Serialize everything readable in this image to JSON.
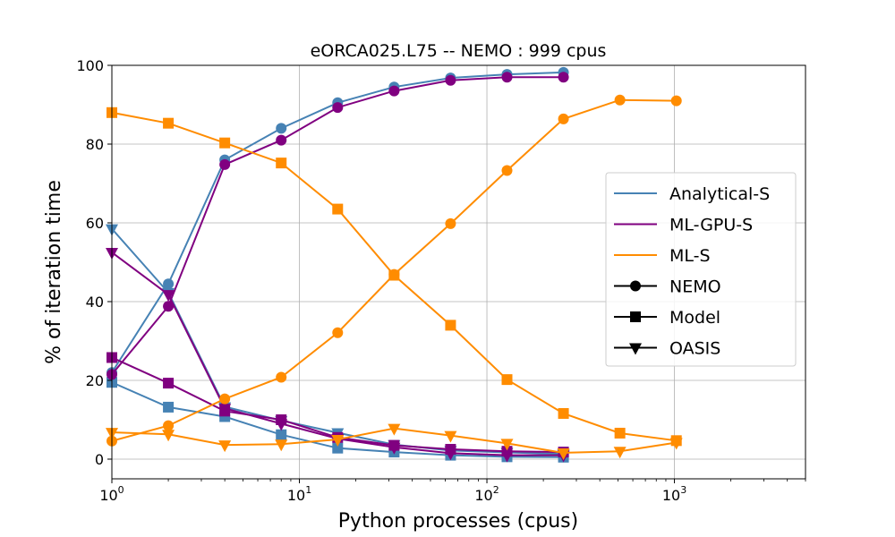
{
  "chart_data": {
    "type": "line",
    "title": "eORCA025.L75 -- NEMO : 999 cpus",
    "xlabel": "Python processes (cpus)",
    "ylabel": "% of iteration time",
    "xscale": "log",
    "xlim": [
      1,
      5000
    ],
    "ylim": [
      -5,
      100
    ],
    "yticks": [
      0,
      20,
      40,
      60,
      80,
      100
    ],
    "xtick_labels": [
      {
        "value": 1,
        "base": "10",
        "exp": "0"
      },
      {
        "value": 10,
        "base": "10",
        "exp": "1"
      },
      {
        "value": 100,
        "base": "10",
        "exp": "2"
      },
      {
        "value": 1000,
        "base": "10",
        "exp": "3"
      }
    ],
    "grid": true,
    "legend_position": "center-right",
    "legend": {
      "configs": [
        {
          "name": "Analytical-S",
          "color": "#4682b4"
        },
        {
          "name": "ML-GPU-S",
          "color": "#800080"
        },
        {
          "name": "ML-S",
          "color": "#ff8c00"
        }
      ],
      "components": [
        {
          "name": "NEMO",
          "marker": "circle"
        },
        {
          "name": "Model",
          "marker": "square"
        },
        {
          "name": "OASIS",
          "marker": "triangle-down"
        }
      ]
    },
    "series": [
      {
        "config": "Analytical-S",
        "component": "NEMO",
        "color": "#4682b4",
        "marker": "circle",
        "x": [
          1,
          2,
          4,
          8,
          16,
          32,
          64,
          128,
          256
        ],
        "y": [
          22,
          44.5,
          76,
          84,
          90.5,
          94.5,
          96.8,
          97.7,
          98.2
        ]
      },
      {
        "config": "Analytical-S",
        "component": "Model",
        "color": "#4682b4",
        "marker": "square",
        "x": [
          1,
          2,
          4,
          8,
          16,
          32,
          64,
          128,
          256
        ],
        "y": [
          19.5,
          13.2,
          10.8,
          6.2,
          2.8,
          1.8,
          1.0,
          0.6,
          0.5
        ]
      },
      {
        "config": "Analytical-S",
        "component": "OASIS",
        "color": "#4682b4",
        "marker": "triangle-down",
        "x": [
          1,
          2,
          4,
          8,
          16,
          32,
          64,
          128,
          256
        ],
        "y": [
          58.5,
          42.3,
          13.3,
          9.8,
          6.7,
          3.7,
          2.2,
          1.7,
          1.3
        ]
      },
      {
        "config": "ML-GPU-S",
        "component": "NEMO",
        "color": "#800080",
        "marker": "circle",
        "x": [
          1,
          2,
          4,
          8,
          16,
          32,
          64,
          128,
          256
        ],
        "y": [
          21.5,
          38.8,
          74.8,
          81,
          89.3,
          93.5,
          96.2,
          97.0,
          97.0
        ]
      },
      {
        "config": "ML-GPU-S",
        "component": "Model",
        "color": "#800080",
        "marker": "square",
        "x": [
          1,
          2,
          4,
          8,
          16,
          32,
          64,
          128,
          256
        ],
        "y": [
          25.8,
          19.3,
          12.2,
          10.0,
          5.5,
          3.5,
          2.5,
          2.0,
          1.8
        ]
      },
      {
        "config": "ML-GPU-S",
        "component": "OASIS",
        "color": "#800080",
        "marker": "triangle-down",
        "x": [
          1,
          2,
          4,
          8,
          16,
          32,
          64,
          128,
          256
        ],
        "y": [
          52.5,
          41.8,
          12.9,
          9.0,
          5.2,
          3.0,
          1.5,
          1.0,
          1.0
        ]
      },
      {
        "config": "ML-S",
        "component": "NEMO",
        "color": "#ff8c00",
        "marker": "circle",
        "x": [
          1,
          2,
          4,
          8,
          16,
          32,
          64,
          128,
          256,
          512,
          1024
        ],
        "y": [
          4.6,
          8.5,
          15.3,
          20.8,
          32.1,
          46.9,
          59.8,
          73.3,
          86.4,
          91.2,
          91.0
        ]
      },
      {
        "config": "ML-S",
        "component": "Model",
        "color": "#ff8c00",
        "marker": "square",
        "x": [
          1,
          2,
          4,
          8,
          16,
          32,
          64,
          128,
          256,
          512,
          1024
        ],
        "y": [
          88,
          85.3,
          80.3,
          75.2,
          63.5,
          46.7,
          34.0,
          20.2,
          11.6,
          6.6,
          4.7
        ]
      },
      {
        "config": "ML-S",
        "component": "OASIS",
        "color": "#ff8c00",
        "marker": "triangle-down",
        "x": [
          1,
          2,
          4,
          8,
          16,
          32,
          64,
          128,
          256,
          512,
          1024
        ],
        "y": [
          6.8,
          6.3,
          3.6,
          3.8,
          5.0,
          7.8,
          6.0,
          4.0,
          1.6,
          2.0,
          4.2
        ]
      }
    ]
  }
}
